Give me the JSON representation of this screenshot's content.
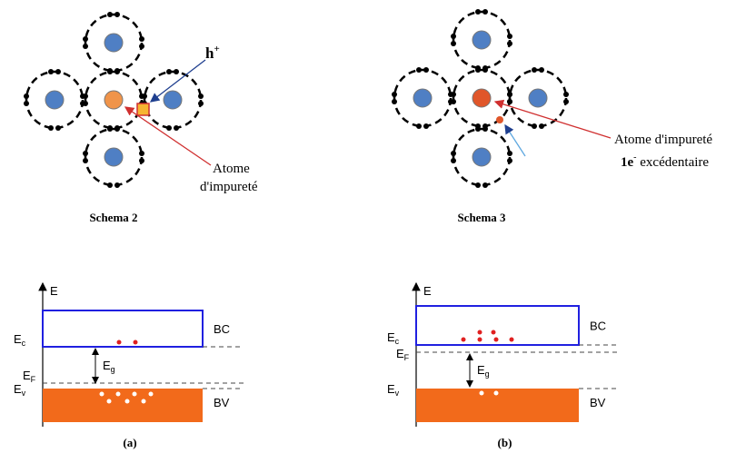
{
  "schema2": {
    "hole_label": {
      "base": "h",
      "sup": "+"
    },
    "impurity_label": [
      "Atome",
      "d'impureté"
    ],
    "caption": "Schema 2"
  },
  "schema3": {
    "impurity_label": "Atome d'impureté",
    "electron_label": {
      "base": "1e",
      "sup": "-",
      "rest": " excédentaire"
    },
    "caption": "Schema 3"
  },
  "band_a": {
    "energy_axis": "E",
    "conduction_band": "BC",
    "valence_band": "BV",
    "ec": {
      "base": "E",
      "sub": "c"
    },
    "ef": {
      "base": "E",
      "sub": "F"
    },
    "ev": {
      "base": "E",
      "sub": "v"
    },
    "eg": {
      "base": "E",
      "sub": "g"
    },
    "caption": "(a)"
  },
  "band_b": {
    "energy_axis": "E",
    "conduction_band": "BC",
    "valence_band": "BV",
    "ec": {
      "base": "E",
      "sub": "c"
    },
    "ef": {
      "base": "E",
      "sub": "F"
    },
    "ev": {
      "base": "E",
      "sub": "v"
    },
    "eg": {
      "base": "E",
      "sub": "g"
    },
    "caption": "(b)"
  }
}
